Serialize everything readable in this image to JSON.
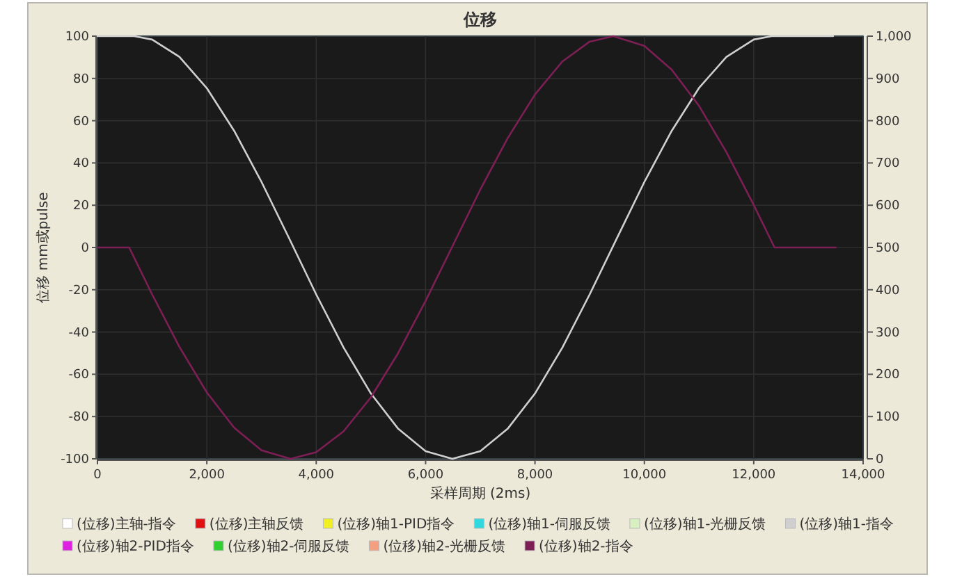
{
  "chart_data": {
    "type": "line",
    "title": "位移",
    "xlabel": "采样周期 (2ms)",
    "ylabel": "位移 mm或pulse",
    "xlim": [
      0,
      14000
    ],
    "xticks": [
      0,
      {
        "value": 2000,
        "label": "2,000"
      },
      {
        "value": 4000,
        "label": "4,000"
      },
      {
        "value": 6000,
        "label": "6,000"
      },
      {
        "value": 8000,
        "label": "8,000"
      },
      {
        "value": 10000,
        "label": "10,000"
      },
      {
        "value": 12000,
        "label": "12,000"
      },
      {
        "value": 14000,
        "label": "14,000"
      }
    ],
    "ylim": [
      -100,
      100
    ],
    "yticks": [
      -100,
      -80,
      -60,
      -40,
      -20,
      0,
      20,
      40,
      60,
      80,
      100
    ],
    "y2lim": [
      0,
      1000
    ],
    "y2ticks": [
      0,
      100,
      200,
      300,
      400,
      500,
      600,
      700,
      800,
      900,
      {
        "value": 1000,
        "label": "1,000"
      }
    ],
    "grid": true,
    "legend": "bottom",
    "marker": "none",
    "line_style": "solid",
    "series": [
      {
        "name": "(位移)主轴-指令",
        "color": "#ffffff"
      },
      {
        "name": "(位移)主轴反馈",
        "color": "#e01010"
      },
      {
        "name": "(位移)轴1-PID指令",
        "color": "#f0f020"
      },
      {
        "name": "(位移)轴1-伺服反馈",
        "color": "#30d8e0"
      },
      {
        "name": "(位移)轴1-光栅反馈",
        "color": "#d8f0c0"
      },
      {
        "name": "(位移)轴1-指令",
        "color": "#cfcfcf",
        "x": [
          0,
          670,
          1000,
          1500,
          2000,
          2500,
          3000,
          3500,
          4000,
          4500,
          5000,
          5500,
          6000,
          6490,
          7000,
          7500,
          8000,
          8500,
          9000,
          9500,
          10000,
          10500,
          11000,
          11500,
          12000,
          12330,
          13450
        ],
        "values": [
          100,
          100,
          98.4,
          90.2,
          75.4,
          55.2,
          31.0,
          4.6,
          -22.2,
          -47.3,
          -69.1,
          -85.8,
          -96.4,
          -100,
          -96.4,
          -85.8,
          -69.1,
          -47.4,
          -22.2,
          4.5,
          31.0,
          55.2,
          75.5,
          90.2,
          98.4,
          100,
          100
        ]
      },
      {
        "name": "(位移)轴2-PID指令",
        "color": "#e020e0"
      },
      {
        "name": "(位移)轴2-伺服反馈",
        "color": "#30d030"
      },
      {
        "name": "(位移)轴2-光栅反馈",
        "color": "#f4a080"
      },
      {
        "name": "(位移)轴2-指令",
        "color": "#7d1f55",
        "x": [
          0,
          580,
          1000,
          1500,
          2000,
          2500,
          3000,
          3530,
          4000,
          4500,
          5000,
          5500,
          6000,
          6480,
          7000,
          7500,
          8000,
          8500,
          9000,
          9430,
          10000,
          10500,
          11000,
          11500,
          12000,
          12380,
          13500
        ],
        "values": [
          0,
          0,
          -22.2,
          -47.1,
          -68.6,
          -85.3,
          -96.0,
          -100,
          -96.9,
          -87.0,
          -70.9,
          -49.9,
          -25.3,
          0,
          27.4,
          51.7,
          72.4,
          88.0,
          97.4,
          100,
          95.4,
          84.1,
          67.0,
          45.1,
          20.1,
          0,
          0
        ]
      }
    ]
  }
}
